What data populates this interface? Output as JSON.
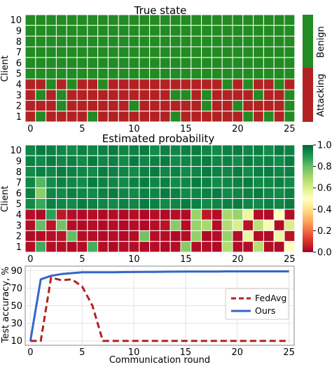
{
  "colors": {
    "benign": "#228B22",
    "attacking": "#B22222",
    "fedavg": "#B22222",
    "ours": "#3366CC",
    "prob_low": "#a50026",
    "prob_mid": "#fefebe",
    "prob_high": "#006837"
  },
  "chart_data": [
    {
      "type": "heatmap",
      "title": "True state",
      "ylabel": "Client",
      "xticks": [
        "0",
        "5",
        "10",
        "15",
        "20",
        "25"
      ],
      "yticks": [
        "1",
        "2",
        "3",
        "4",
        "5",
        "6",
        "7",
        "8",
        "9",
        "10"
      ],
      "colorbar_labels": [
        "Benign",
        "Attacking"
      ],
      "rounds": 26,
      "clients": 10,
      "benign_clients_5_to_10": "all benign",
      "rows_client_4_to_1_1_is_attacking": [
        "11010110111111111110101101",
        "10101111111111001011110110",
        "11101111110111111011011110",
        "10111101111111011111101010"
      ]
    },
    {
      "type": "heatmap",
      "title": "Estimated probability",
      "ylabel": "Client",
      "xticks": [
        "0",
        "5",
        "10",
        "15",
        "20",
        "25"
      ],
      "yticks": [
        "1",
        "2",
        "3",
        "4",
        "5",
        "6",
        "7",
        "8",
        "9",
        "10"
      ],
      "colorbar_ticks": [
        "0.0",
        "0.2",
        "0.4",
        "0.6",
        "0.8",
        "1.0"
      ],
      "rows_client_10_to_5": [
        [
          0.94,
          0.96,
          0.95,
          0.94,
          0.93,
          0.95,
          0.94,
          0.95,
          0.96,
          0.94,
          0.95,
          0.96,
          0.93,
          0.95,
          0.94,
          0.95,
          0.96,
          0.94,
          0.93,
          0.95,
          0.96,
          0.94,
          0.95,
          0.93,
          0.96,
          0.95
        ],
        [
          0.95,
          0.93,
          0.96,
          0.94,
          0.95,
          0.93,
          0.96,
          0.94,
          0.95,
          0.93,
          0.96,
          0.94,
          0.95,
          0.96,
          0.93,
          0.94,
          0.95,
          0.96,
          0.94,
          0.95,
          0.93,
          0.96,
          0.94,
          0.95,
          0.93,
          0.96
        ],
        [
          0.93,
          0.95,
          0.94,
          0.96,
          0.95,
          0.94,
          0.93,
          0.96,
          0.95,
          0.94,
          0.93,
          0.95,
          0.96,
          0.94,
          0.95,
          0.93,
          0.94,
          0.96,
          0.95,
          0.94,
          0.96,
          0.93,
          0.95,
          0.96,
          0.94,
          0.95
        ],
        [
          0.94,
          0.82,
          0.93,
          0.95,
          0.94,
          0.93,
          0.96,
          0.95,
          0.94,
          0.93,
          0.95,
          0.96,
          0.94,
          0.95,
          0.93,
          0.94,
          0.96,
          0.95,
          0.93,
          0.94,
          0.95,
          0.96,
          0.93,
          0.94,
          0.95,
          0.93
        ],
        [
          0.95,
          0.74,
          0.94,
          0.93,
          0.95,
          0.94,
          0.93,
          0.95,
          0.96,
          0.94,
          0.93,
          0.95,
          0.94,
          0.96,
          0.95,
          0.93,
          0.94,
          0.95,
          0.96,
          0.93,
          0.94,
          0.95,
          0.96,
          0.94,
          0.93,
          0.95
        ],
        [
          0.93,
          0.86,
          0.95,
          0.94,
          0.93,
          0.96,
          0.95,
          0.94,
          0.93,
          0.95,
          0.94,
          0.96,
          0.95,
          0.93,
          0.94,
          0.96,
          0.95,
          0.93,
          0.94,
          0.95,
          0.96,
          0.94,
          0.93,
          0.95,
          0.94,
          0.96
        ]
      ],
      "rows_client_4_to_1": [
        [
          0.03,
          0.02,
          0.88,
          0.05,
          0.03,
          0.02,
          0.03,
          0.02,
          0.03,
          0.02,
          0.03,
          0.02,
          0.03,
          0.02,
          0.03,
          0.02,
          0.72,
          0.05,
          0.03,
          0.7,
          0.72,
          0.55,
          0.03,
          0.02,
          0.5,
          0.03
        ],
        [
          0.03,
          0.8,
          0.04,
          0.78,
          0.03,
          0.02,
          0.03,
          0.02,
          0.03,
          0.02,
          0.03,
          0.02,
          0.03,
          0.04,
          0.75,
          0.03,
          0.72,
          0.7,
          0.03,
          0.68,
          0.6,
          0.04,
          0.66,
          0.52,
          0.03,
          0.6
        ],
        [
          0.02,
          0.03,
          0.03,
          0.04,
          0.8,
          0.03,
          0.03,
          0.02,
          0.03,
          0.02,
          0.03,
          0.78,
          0.03,
          0.03,
          0.02,
          0.03,
          0.73,
          0.02,
          0.03,
          0.72,
          0.03,
          0.55,
          0.03,
          0.02,
          0.55,
          0.04
        ],
        [
          0.03,
          0.85,
          0.03,
          0.03,
          0.02,
          0.03,
          0.84,
          0.03,
          0.02,
          0.03,
          0.03,
          0.02,
          0.03,
          0.02,
          0.03,
          0.75,
          0.03,
          0.03,
          0.02,
          0.68,
          0.03,
          0.03,
          0.67,
          0.03,
          0.02,
          0.5
        ]
      ]
    },
    {
      "type": "line",
      "xlabel": "Communication round",
      "ylabel": "Test accuracy, %",
      "xticks": [
        0,
        5,
        10,
        15,
        20,
        25
      ],
      "yticks": [
        10,
        30,
        50,
        70,
        90
      ],
      "xlim": [
        -0.5,
        25.5
      ],
      "ylim": [
        5,
        95
      ],
      "grid": true,
      "legend_position": "center-right",
      "series": [
        {
          "name": "FedAvg",
          "style": "dashed",
          "x": [
            0,
            1,
            2,
            3,
            4,
            5,
            6,
            7,
            8,
            9,
            10,
            11,
            12,
            13,
            14,
            15,
            16,
            17,
            18,
            19,
            20,
            21,
            22,
            23,
            24,
            25
          ],
          "values": [
            10,
            10,
            82,
            79,
            80,
            72,
            50,
            10,
            10,
            10,
            10,
            10,
            10,
            10,
            10,
            10,
            10,
            10,
            10,
            10,
            10,
            10,
            10,
            10,
            10,
            10
          ]
        },
        {
          "name": "Ours",
          "style": "solid",
          "x": [
            0,
            1,
            2,
            3,
            4,
            5,
            6,
            7,
            8,
            9,
            10,
            11,
            12,
            13,
            14,
            15,
            16,
            17,
            18,
            19,
            20,
            21,
            22,
            23,
            24,
            25
          ],
          "values": [
            10,
            80,
            84,
            86,
            87,
            88,
            88,
            88,
            88,
            88.2,
            88.3,
            88.4,
            88.5,
            88.6,
            88.7,
            88.8,
            88.8,
            88.9,
            88.9,
            89,
            89,
            89,
            89,
            89,
            89,
            89
          ]
        }
      ]
    }
  ]
}
